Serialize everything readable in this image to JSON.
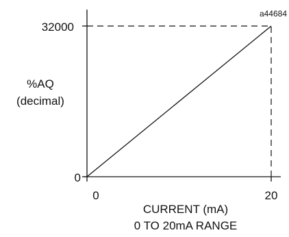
{
  "figure_ref": "a44684",
  "chart_data": {
    "type": "line",
    "title": "",
    "xlabel": [
      "CURRENT (mA)",
      "0 TO 20mA RANGE"
    ],
    "ylabel": [
      "%AQ",
      "(decimal)"
    ],
    "xlim": [
      0,
      20
    ],
    "ylim": [
      0,
      32000
    ],
    "x_ticks": [
      "0",
      "20"
    ],
    "y_ticks": [
      "0",
      "32000"
    ],
    "grid": false,
    "legend": "none",
    "series": [
      {
        "x": [
          0,
          20
        ],
        "y": [
          0,
          32000
        ]
      }
    ],
    "guides": [
      {
        "from": [
          0,
          32000
        ],
        "to": [
          20,
          32000
        ],
        "style": "dashed"
      },
      {
        "from": [
          20,
          0
        ],
        "to": [
          20,
          32000
        ],
        "style": "dashed"
      }
    ],
    "colors": {
      "line": "#111111"
    }
  }
}
